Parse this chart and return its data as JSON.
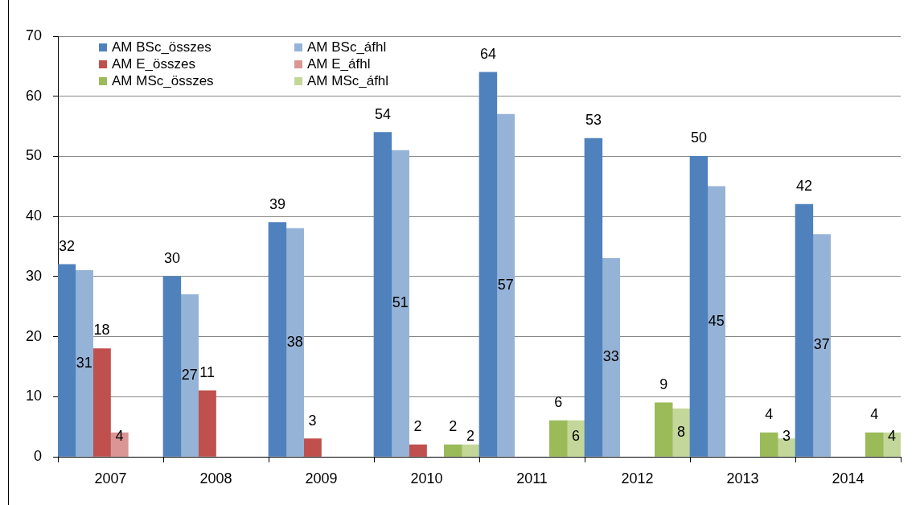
{
  "chart_data": {
    "type": "bar",
    "categories": [
      "2007",
      "2008",
      "2009",
      "2010",
      "2011",
      "2012",
      "2013",
      "2014"
    ],
    "series": [
      {
        "name": "AM BSc_összes",
        "color": "#4f81bd",
        "values": [
          32,
          30,
          39,
          54,
          64,
          53,
          50,
          42
        ]
      },
      {
        "name": "AM BSc_áfhl",
        "color": "#95b3d7",
        "values": [
          31,
          27,
          38,
          51,
          57,
          33,
          45,
          37
        ]
      },
      {
        "name": "AM E_összes",
        "color": "#c0504d",
        "values": [
          18,
          11,
          3,
          2,
          null,
          null,
          null,
          null
        ]
      },
      {
        "name": "AM E_áfhl",
        "color": "#da9694",
        "values": [
          4,
          null,
          null,
          null,
          null,
          null,
          null,
          null
        ]
      },
      {
        "name": "AM MSc_összes",
        "color": "#9bbb59",
        "values": [
          null,
          null,
          null,
          2,
          6,
          9,
          4,
          4
        ]
      },
      {
        "name": "AM MSc_áfhl",
        "color": "#c4d79b",
        "values": [
          null,
          null,
          null,
          2,
          6,
          8,
          3,
          4
        ]
      }
    ],
    "ylim": [
      0,
      70
    ],
    "yticks": [
      0,
      10,
      20,
      30,
      40,
      50,
      60,
      70
    ],
    "grid": "y",
    "legend": "top left",
    "data_labels": true
  }
}
